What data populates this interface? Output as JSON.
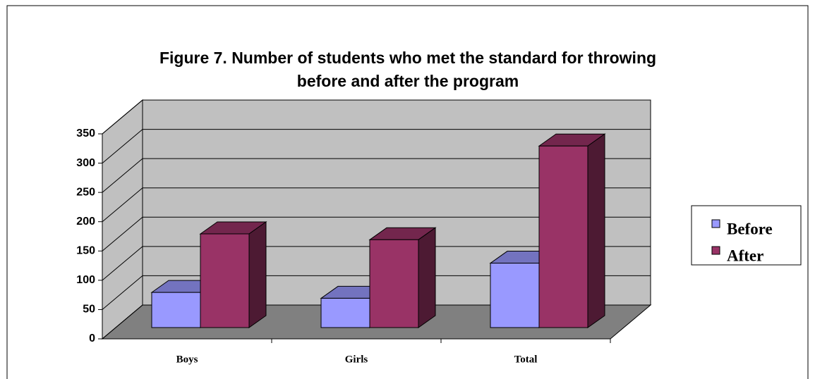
{
  "chart_data": {
    "type": "bar3d",
    "title": [
      "Figure 7. Number of students who met the standard for throwing",
      "before and after the program"
    ],
    "categories": [
      "Boys",
      "Girls",
      "Total"
    ],
    "series": [
      {
        "name": "Before",
        "color": "#9999ff",
        "values": [
          60,
          50,
          110
        ]
      },
      {
        "name": "After",
        "color": "#993366",
        "values": [
          160,
          150,
          310
        ]
      }
    ],
    "ylim": [
      0,
      350
    ],
    "yticks": [
      0,
      50,
      100,
      150,
      200,
      250,
      300,
      350
    ],
    "grid": true,
    "legend": "right"
  }
}
